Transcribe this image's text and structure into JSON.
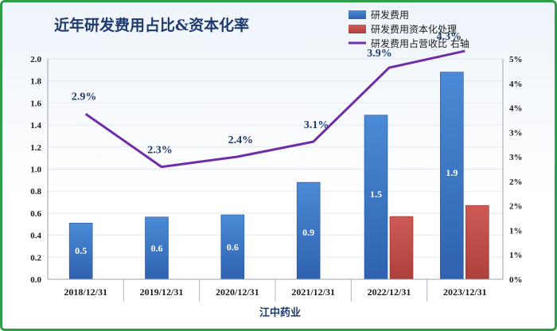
{
  "chart_data": {
    "type": "bar",
    "title": "近年研发费用占比&资本化率",
    "xlabel": "江中药业",
    "categories": [
      "2018/12/31",
      "2019/12/31",
      "2020/12/31",
      "2021/12/31",
      "2022/12/31",
      "2023/12/31"
    ],
    "ylim": [
      0,
      2.0
    ],
    "y_ticks": [
      "0.0",
      "0.2",
      "0.4",
      "0.6",
      "0.8",
      "1.0",
      "1.2",
      "1.4",
      "1.6",
      "1.8",
      "2.0"
    ],
    "y2lim": [
      0,
      5
    ],
    "y2_ticks": [
      "0%",
      "1%",
      "1%",
      "2%",
      "2%",
      "3%",
      "3%",
      "4%",
      "4%",
      "5%"
    ],
    "series": [
      {
        "name": "研发费用",
        "type": "bar",
        "axis": "left",
        "values": [
          0.51,
          0.565,
          0.585,
          0.88,
          1.49,
          1.88
        ],
        "labels": [
          "0.5",
          "0.6",
          "0.6",
          "0.9",
          "1.5",
          "1.9"
        ],
        "color": "#3d78c8"
      },
      {
        "name": "研发费用资本化处理",
        "type": "bar",
        "axis": "left",
        "values": [
          0,
          0,
          0,
          0,
          0.57,
          0.67
        ],
        "color": "#c0504d"
      },
      {
        "name": "研发费用占营收比 右轴",
        "type": "line",
        "axis": "right",
        "values": [
          2.9,
          2.3,
          2.4,
          3.1,
          3.9,
          4.3
        ],
        "plot_values": [
          3.75,
          2.55,
          2.78,
          3.12,
          4.8,
          5.18
        ],
        "labels": [
          "2.9%",
          "2.3%",
          "2.4%",
          "3.1%",
          "3.9%",
          "4.3%"
        ],
        "color": "#6f2da8"
      }
    ],
    "legend_position": "top-right",
    "grid": true
  }
}
